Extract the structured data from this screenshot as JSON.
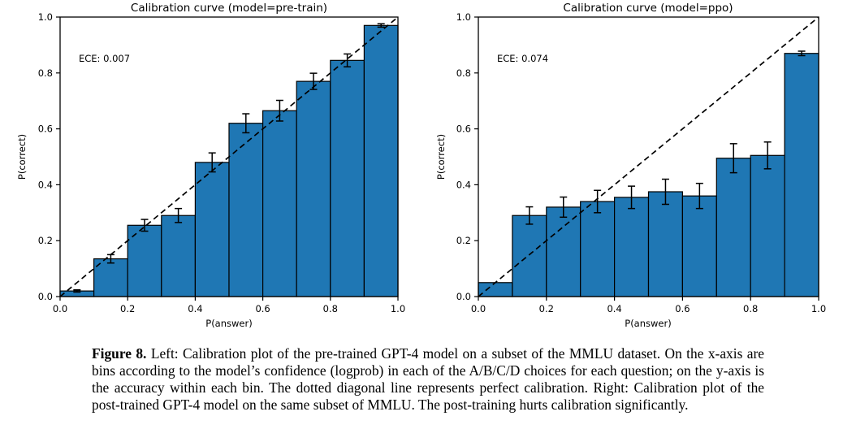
{
  "colors": {
    "bar_fill": "#1f77b4",
    "bar_edge": "#000000",
    "diagonal_line": "#000000",
    "text": "#000000",
    "background": "#ffffff"
  },
  "caption": {
    "label": "Figure 8.",
    "text": " Left: Calibration plot of the pre-trained GPT-4 model on a subset of the MMLU dataset. On the x-axis are bins according to the model’s confidence (logprob) in each of the A/B/C/D choices for each question; on the y-axis is the accuracy within each bin. The dotted diagonal line represents perfect calibration. Right: Calibration plot of the post-trained GPT-4 model on the same subset of MMLU. The post-training hurts calibration significantly."
  },
  "chart_data": [
    {
      "type": "bar",
      "title": "Calibration curve (model=pre-train)",
      "annotation": "ECE: 0.007",
      "xlabel": "P(answer)",
      "ylabel": "P(correct)",
      "xlim": [
        0.0,
        1.0
      ],
      "ylim": [
        0.0,
        1.0
      ],
      "grid": false,
      "diagonal_reference_line": true,
      "xticks": [
        "0.0",
        "0.2",
        "0.4",
        "0.6",
        "0.8",
        "1.0"
      ],
      "yticks": [
        "0.0",
        "0.2",
        "0.4",
        "0.6",
        "0.8",
        "1.0"
      ],
      "bin_edges": [
        0.0,
        0.1,
        0.2,
        0.3,
        0.4,
        0.5,
        0.6,
        0.7,
        0.8,
        0.9,
        1.0
      ],
      "values": [
        0.02,
        0.135,
        0.255,
        0.29,
        0.48,
        0.62,
        0.665,
        0.77,
        0.845,
        0.97
      ],
      "errors": [
        0.004,
        0.015,
        0.021,
        0.025,
        0.034,
        0.034,
        0.037,
        0.029,
        0.023,
        0.006
      ]
    },
    {
      "type": "bar",
      "title": "Calibration curve (model=ppo)",
      "annotation": "ECE: 0.074",
      "xlabel": "P(answer)",
      "ylabel": "P(correct)",
      "xlim": [
        0.0,
        1.0
      ],
      "ylim": [
        0.0,
        1.0
      ],
      "grid": false,
      "diagonal_reference_line": true,
      "xticks": [
        "0.0",
        "0.2",
        "0.4",
        "0.6",
        "0.8",
        "1.0"
      ],
      "yticks": [
        "0.0",
        "0.2",
        "0.4",
        "0.6",
        "0.8",
        "1.0"
      ],
      "bin_edges": [
        0.0,
        0.1,
        0.2,
        0.3,
        0.4,
        0.5,
        0.6,
        0.7,
        0.8,
        0.9,
        1.0
      ],
      "values": [
        0.05,
        0.29,
        0.32,
        0.34,
        0.355,
        0.375,
        0.36,
        0.495,
        0.505,
        0.87
      ],
      "errors": [
        0,
        0.031,
        0.036,
        0.04,
        0.04,
        0.045,
        0.045,
        0.052,
        0.048,
        0.008
      ]
    }
  ]
}
